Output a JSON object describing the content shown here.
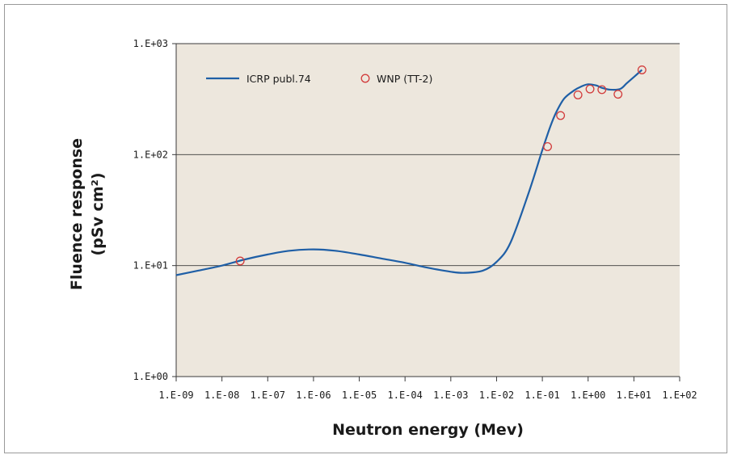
{
  "chart_data": {
    "type": "line",
    "title": "",
    "xlabel": "Neutron energy (Mev)",
    "ylabel_line1": "Fluence response",
    "ylabel_line2": "(pSv cm²)",
    "x_scale": "log",
    "y_scale": "log",
    "xlim": [
      1e-09,
      100
    ],
    "ylim": [
      1,
      1000
    ],
    "x_ticks": [
      1e-09,
      1e-08,
      1e-07,
      1e-06,
      1e-05,
      0.0001,
      0.001,
      0.01,
      0.1,
      1,
      10,
      100
    ],
    "x_tick_labels": [
      "1.E-09",
      "1.E-08",
      "1.E-07",
      "1.E-06",
      "1.E-05",
      "1.E-04",
      "1.E-03",
      "1.E-02",
      "1.E-01",
      "1.E+00",
      "1.E+01",
      "1.E+02"
    ],
    "y_ticks": [
      1,
      10,
      100,
      1000
    ],
    "y_tick_labels": [
      "1.E+00",
      "1.E+01",
      "1.E+02",
      "1.E+03"
    ],
    "grid": "horizontal",
    "legend_position": "top-left",
    "plot_background": "#ede7dd",
    "series": [
      {
        "name": "ICRP publ.74",
        "style": "line",
        "color": "#1f5fa6",
        "x": [
          1e-09,
          3e-09,
          1e-08,
          3e-08,
          1e-07,
          3e-07,
          1e-06,
          3e-06,
          1e-05,
          3e-05,
          0.0001,
          0.0003,
          0.001,
          0.002,
          0.005,
          0.01,
          0.02,
          0.05,
          0.1,
          0.15,
          0.2,
          0.3,
          0.5,
          0.7,
          1.0,
          1.5,
          2.0,
          3.0,
          5.0,
          7.0,
          10.0,
          15.0
        ],
        "y": [
          8.2,
          9.0,
          10.0,
          11.3,
          12.6,
          13.6,
          14.0,
          13.6,
          12.6,
          11.6,
          10.6,
          9.6,
          8.8,
          8.6,
          9.0,
          10.8,
          16.0,
          45.0,
          110,
          180,
          240,
          320,
          380,
          410,
          430,
          420,
          400,
          385,
          390,
          440,
          500,
          580
        ]
      },
      {
        "name": "WNP (TT-2)",
        "style": "marker",
        "marker": "open-circle",
        "color": "#d23c3c",
        "x": [
          2.5e-08,
          0.13,
          0.25,
          0.6,
          1.1,
          2.0,
          4.5,
          15.0
        ],
        "y": [
          11.0,
          118,
          225,
          345,
          390,
          385,
          350,
          580
        ]
      }
    ]
  }
}
